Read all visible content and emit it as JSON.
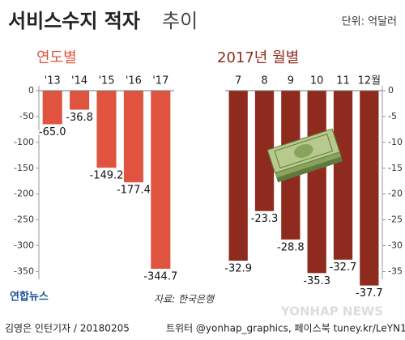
{
  "title": "서비스수지 적자",
  "title_suffix": "추이",
  "unit": "단위: 억달러",
  "source": "자료: 한국은행",
  "logo": "연합뉴스",
  "watermark": "YONHAP NEWS",
  "credit": "김영은 인턴기자 / 20180205",
  "sns": "트위터 @yonhap_graphics, 페이스북 tuney.kr/LeYN1",
  "chart_data": [
    {
      "type": "bar",
      "title": "연도별",
      "categories": [
        "'13",
        "'14",
        "'15",
        "'16",
        "'17"
      ],
      "values": [
        -65.0,
        -36.8,
        -149.2,
        -177.4,
        -344.7
      ],
      "value_labels": [
        "-65.0",
        "-36.8",
        "-149.2",
        "-177.4",
        "-344.7"
      ],
      "color": "#e0533f",
      "ylim": [
        -365,
        0
      ],
      "yticks": [
        0,
        -50,
        -100,
        -150,
        -200,
        -250,
        -300,
        -350
      ],
      "yaxis_position": "left"
    },
    {
      "type": "bar",
      "title": "2017년 월별",
      "categories": [
        "7",
        "8",
        "9",
        "10",
        "11",
        "12월"
      ],
      "values": [
        -32.9,
        -23.3,
        -28.8,
        -35.3,
        -32.7,
        -37.7
      ],
      "value_labels": [
        "-32.9",
        "-23.3",
        "-28.8",
        "-35.3",
        "-32.7",
        "-37.7"
      ],
      "color": "#8e2b1e",
      "ylim": [
        -36.5,
        0
      ],
      "yticks": [
        0,
        -5,
        -10,
        -15,
        -20,
        -25,
        -30,
        -35
      ],
      "yaxis_position": "right"
    }
  ]
}
